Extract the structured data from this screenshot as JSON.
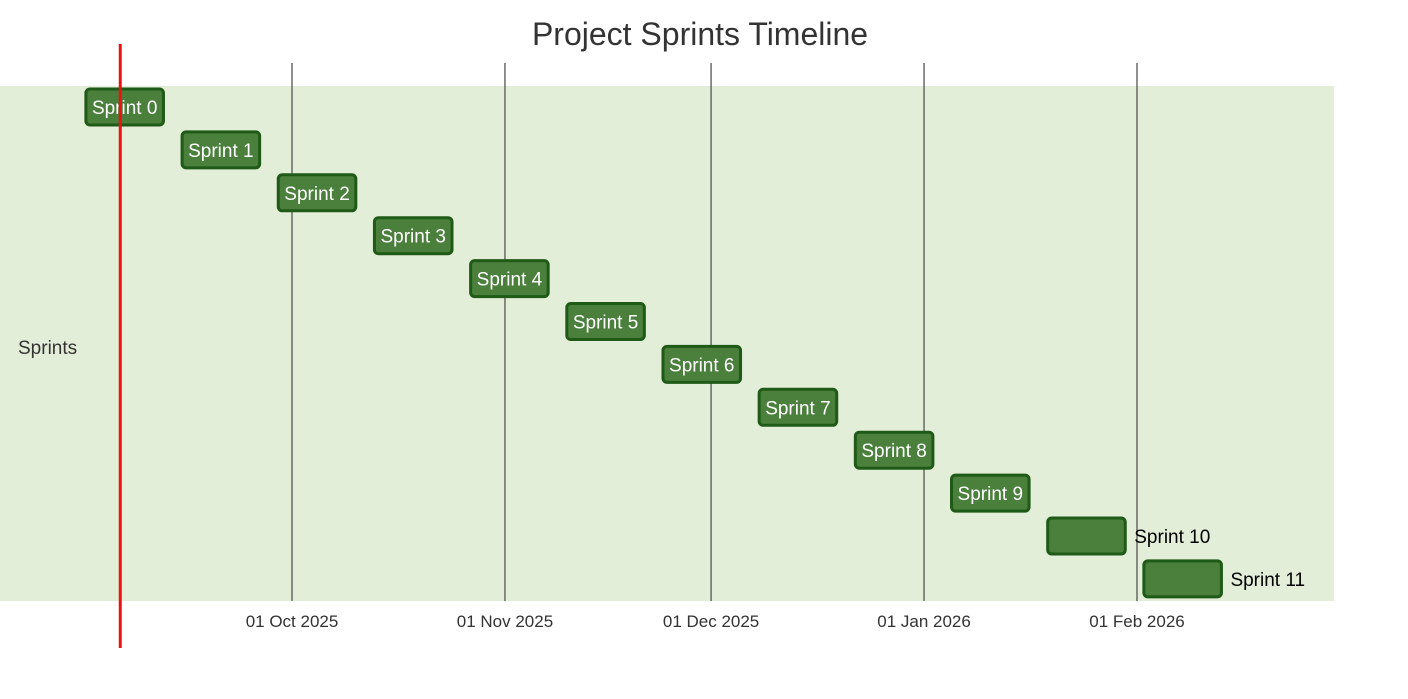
{
  "chart_data": {
    "type": "gantt",
    "title": "Project Sprints Timeline",
    "section": "Sprints",
    "x_axis": {
      "range": [
        "2025-09-01",
        "2026-02-28"
      ],
      "ticks": [
        {
          "date": "2025-10-01",
          "label": "01 Oct 2025"
        },
        {
          "date": "2025-11-01",
          "label": "01 Nov 2025"
        },
        {
          "date": "2025-12-01",
          "label": "01 Dec 2025"
        },
        {
          "date": "2026-01-01",
          "label": "01 Jan 2026"
        },
        {
          "date": "2026-02-01",
          "label": "01 Feb 2026"
        }
      ],
      "grid": true
    },
    "today_marker": {
      "date": "2025-09-06",
      "color": "#ee1111"
    },
    "tasks": [
      {
        "name": "Sprint 0",
        "start": "2025-09-01",
        "end": "2025-09-12"
      },
      {
        "name": "Sprint 1",
        "start": "2025-09-15",
        "end": "2025-09-26"
      },
      {
        "name": "Sprint 2",
        "start": "2025-09-29",
        "end": "2025-10-10"
      },
      {
        "name": "Sprint 3",
        "start": "2025-10-13",
        "end": "2025-10-24"
      },
      {
        "name": "Sprint 4",
        "start": "2025-10-27",
        "end": "2025-11-07"
      },
      {
        "name": "Sprint 5",
        "start": "2025-11-10",
        "end": "2025-11-21"
      },
      {
        "name": "Sprint 6",
        "start": "2025-11-24",
        "end": "2025-12-05"
      },
      {
        "name": "Sprint 7",
        "start": "2025-12-08",
        "end": "2025-12-19"
      },
      {
        "name": "Sprint 8",
        "start": "2025-12-22",
        "end": "2026-01-02"
      },
      {
        "name": "Sprint 9",
        "start": "2026-01-05",
        "end": "2026-01-16"
      },
      {
        "name": "Sprint 10",
        "start": "2026-01-19",
        "end": "2026-01-30"
      },
      {
        "name": "Sprint 11",
        "start": "2026-02-02",
        "end": "2026-02-13"
      }
    ],
    "colors": {
      "section_band": "#e2eed8",
      "bar_fill": "#4a7f3c",
      "bar_stroke": "#1f5a17",
      "grid_line": "#555555"
    }
  }
}
